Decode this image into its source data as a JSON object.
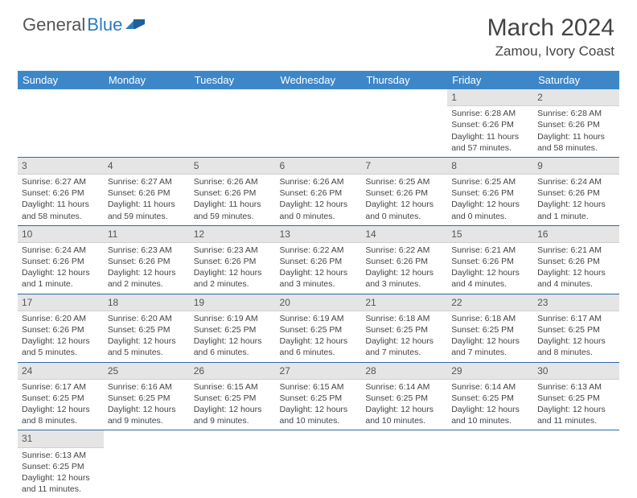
{
  "brand": {
    "part1": "General",
    "part2": "Blue"
  },
  "title": "March 2024",
  "location": "Zamou, Ivory Coast",
  "colors": {
    "header_bg": "#3d87c9",
    "row_divider": "#2b6aa8",
    "daynum_bg": "#e5e5e5",
    "text": "#444444",
    "brand_blue": "#2b7bbf"
  },
  "weekdays": [
    "Sunday",
    "Monday",
    "Tuesday",
    "Wednesday",
    "Thursday",
    "Friday",
    "Saturday"
  ],
  "weeks": [
    [
      null,
      null,
      null,
      null,
      null,
      {
        "n": "1",
        "sr": "Sunrise: 6:28 AM",
        "ss": "Sunset: 6:26 PM",
        "dl": "Daylight: 11 hours and 57 minutes."
      },
      {
        "n": "2",
        "sr": "Sunrise: 6:28 AM",
        "ss": "Sunset: 6:26 PM",
        "dl": "Daylight: 11 hours and 58 minutes."
      }
    ],
    [
      {
        "n": "3",
        "sr": "Sunrise: 6:27 AM",
        "ss": "Sunset: 6:26 PM",
        "dl": "Daylight: 11 hours and 58 minutes."
      },
      {
        "n": "4",
        "sr": "Sunrise: 6:27 AM",
        "ss": "Sunset: 6:26 PM",
        "dl": "Daylight: 11 hours and 59 minutes."
      },
      {
        "n": "5",
        "sr": "Sunrise: 6:26 AM",
        "ss": "Sunset: 6:26 PM",
        "dl": "Daylight: 11 hours and 59 minutes."
      },
      {
        "n": "6",
        "sr": "Sunrise: 6:26 AM",
        "ss": "Sunset: 6:26 PM",
        "dl": "Daylight: 12 hours and 0 minutes."
      },
      {
        "n": "7",
        "sr": "Sunrise: 6:25 AM",
        "ss": "Sunset: 6:26 PM",
        "dl": "Daylight: 12 hours and 0 minutes."
      },
      {
        "n": "8",
        "sr": "Sunrise: 6:25 AM",
        "ss": "Sunset: 6:26 PM",
        "dl": "Daylight: 12 hours and 0 minutes."
      },
      {
        "n": "9",
        "sr": "Sunrise: 6:24 AM",
        "ss": "Sunset: 6:26 PM",
        "dl": "Daylight: 12 hours and 1 minute."
      }
    ],
    [
      {
        "n": "10",
        "sr": "Sunrise: 6:24 AM",
        "ss": "Sunset: 6:26 PM",
        "dl": "Daylight: 12 hours and 1 minute."
      },
      {
        "n": "11",
        "sr": "Sunrise: 6:23 AM",
        "ss": "Sunset: 6:26 PM",
        "dl": "Daylight: 12 hours and 2 minutes."
      },
      {
        "n": "12",
        "sr": "Sunrise: 6:23 AM",
        "ss": "Sunset: 6:26 PM",
        "dl": "Daylight: 12 hours and 2 minutes."
      },
      {
        "n": "13",
        "sr": "Sunrise: 6:22 AM",
        "ss": "Sunset: 6:26 PM",
        "dl": "Daylight: 12 hours and 3 minutes."
      },
      {
        "n": "14",
        "sr": "Sunrise: 6:22 AM",
        "ss": "Sunset: 6:26 PM",
        "dl": "Daylight: 12 hours and 3 minutes."
      },
      {
        "n": "15",
        "sr": "Sunrise: 6:21 AM",
        "ss": "Sunset: 6:26 PM",
        "dl": "Daylight: 12 hours and 4 minutes."
      },
      {
        "n": "16",
        "sr": "Sunrise: 6:21 AM",
        "ss": "Sunset: 6:26 PM",
        "dl": "Daylight: 12 hours and 4 minutes."
      }
    ],
    [
      {
        "n": "17",
        "sr": "Sunrise: 6:20 AM",
        "ss": "Sunset: 6:26 PM",
        "dl": "Daylight: 12 hours and 5 minutes."
      },
      {
        "n": "18",
        "sr": "Sunrise: 6:20 AM",
        "ss": "Sunset: 6:25 PM",
        "dl": "Daylight: 12 hours and 5 minutes."
      },
      {
        "n": "19",
        "sr": "Sunrise: 6:19 AM",
        "ss": "Sunset: 6:25 PM",
        "dl": "Daylight: 12 hours and 6 minutes."
      },
      {
        "n": "20",
        "sr": "Sunrise: 6:19 AM",
        "ss": "Sunset: 6:25 PM",
        "dl": "Daylight: 12 hours and 6 minutes."
      },
      {
        "n": "21",
        "sr": "Sunrise: 6:18 AM",
        "ss": "Sunset: 6:25 PM",
        "dl": "Daylight: 12 hours and 7 minutes."
      },
      {
        "n": "22",
        "sr": "Sunrise: 6:18 AM",
        "ss": "Sunset: 6:25 PM",
        "dl": "Daylight: 12 hours and 7 minutes."
      },
      {
        "n": "23",
        "sr": "Sunrise: 6:17 AM",
        "ss": "Sunset: 6:25 PM",
        "dl": "Daylight: 12 hours and 8 minutes."
      }
    ],
    [
      {
        "n": "24",
        "sr": "Sunrise: 6:17 AM",
        "ss": "Sunset: 6:25 PM",
        "dl": "Daylight: 12 hours and 8 minutes."
      },
      {
        "n": "25",
        "sr": "Sunrise: 6:16 AM",
        "ss": "Sunset: 6:25 PM",
        "dl": "Daylight: 12 hours and 9 minutes."
      },
      {
        "n": "26",
        "sr": "Sunrise: 6:15 AM",
        "ss": "Sunset: 6:25 PM",
        "dl": "Daylight: 12 hours and 9 minutes."
      },
      {
        "n": "27",
        "sr": "Sunrise: 6:15 AM",
        "ss": "Sunset: 6:25 PM",
        "dl": "Daylight: 12 hours and 10 minutes."
      },
      {
        "n": "28",
        "sr": "Sunrise: 6:14 AM",
        "ss": "Sunset: 6:25 PM",
        "dl": "Daylight: 12 hours and 10 minutes."
      },
      {
        "n": "29",
        "sr": "Sunrise: 6:14 AM",
        "ss": "Sunset: 6:25 PM",
        "dl": "Daylight: 12 hours and 10 minutes."
      },
      {
        "n": "30",
        "sr": "Sunrise: 6:13 AM",
        "ss": "Sunset: 6:25 PM",
        "dl": "Daylight: 12 hours and 11 minutes."
      }
    ],
    [
      {
        "n": "31",
        "sr": "Sunrise: 6:13 AM",
        "ss": "Sunset: 6:25 PM",
        "dl": "Daylight: 12 hours and 11 minutes."
      },
      null,
      null,
      null,
      null,
      null,
      null
    ]
  ]
}
